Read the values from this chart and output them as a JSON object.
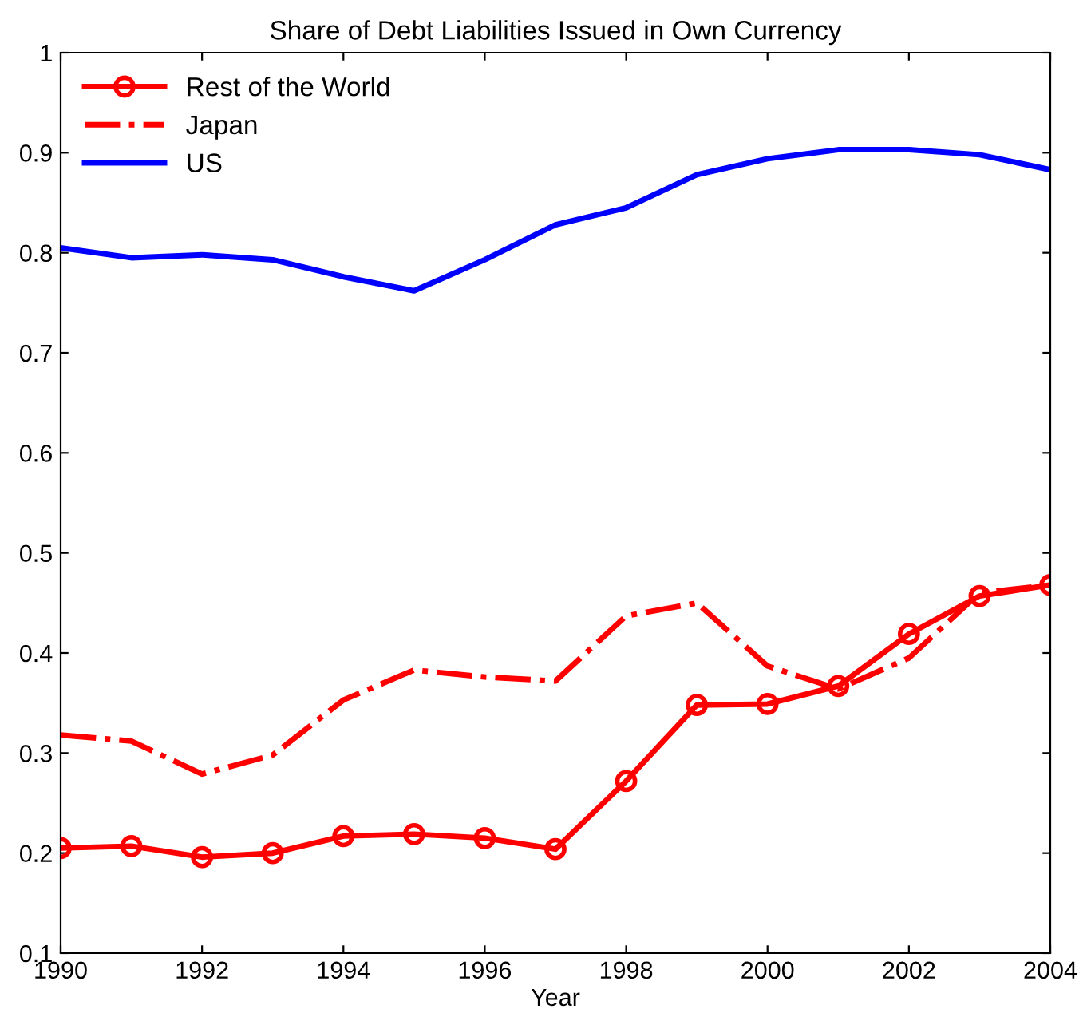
{
  "chart_data": {
    "type": "line",
    "title": "Share of Debt Liabilities Issued in Own Currency",
    "xlabel": "Year",
    "x": [
      1990,
      1991,
      1992,
      1993,
      1994,
      1995,
      1996,
      1997,
      1998,
      1999,
      2000,
      2001,
      2002,
      2003,
      2004
    ],
    "series": [
      {
        "name": "Rest of the World",
        "color": "#ff0000",
        "marker": "circle",
        "line_style": "solid",
        "values": [
          0.205,
          0.207,
          0.196,
          0.2,
          0.217,
          0.219,
          0.215,
          0.204,
          0.272,
          0.348,
          0.349,
          0.367,
          0.419,
          0.457,
          0.468
        ]
      },
      {
        "name": "Japan",
        "color": "#ff0000",
        "marker": "none",
        "line_style": "dashdot",
        "values": [
          0.318,
          0.312,
          0.279,
          0.298,
          0.353,
          0.383,
          0.376,
          0.372,
          0.437,
          0.45,
          0.387,
          0.364,
          0.395,
          0.46,
          0.468
        ]
      },
      {
        "name": "US",
        "color": "#0000ff",
        "marker": "none",
        "line_style": "solid",
        "values": [
          0.805,
          0.795,
          0.798,
          0.793,
          0.776,
          0.762,
          0.793,
          0.828,
          0.845,
          0.878,
          0.894,
          0.903,
          0.903,
          0.898,
          0.883
        ]
      }
    ],
    "xlim": [
      1990,
      2004
    ],
    "xticks": [
      1990,
      1992,
      1994,
      1996,
      1998,
      2000,
      2002,
      2004
    ],
    "ylim": [
      0.1,
      1
    ],
    "yticks": [
      0.1,
      0.2,
      0.3,
      0.4,
      0.5,
      0.6,
      0.7,
      0.8,
      0.9,
      1
    ],
    "grid": false,
    "legend": "top left"
  }
}
